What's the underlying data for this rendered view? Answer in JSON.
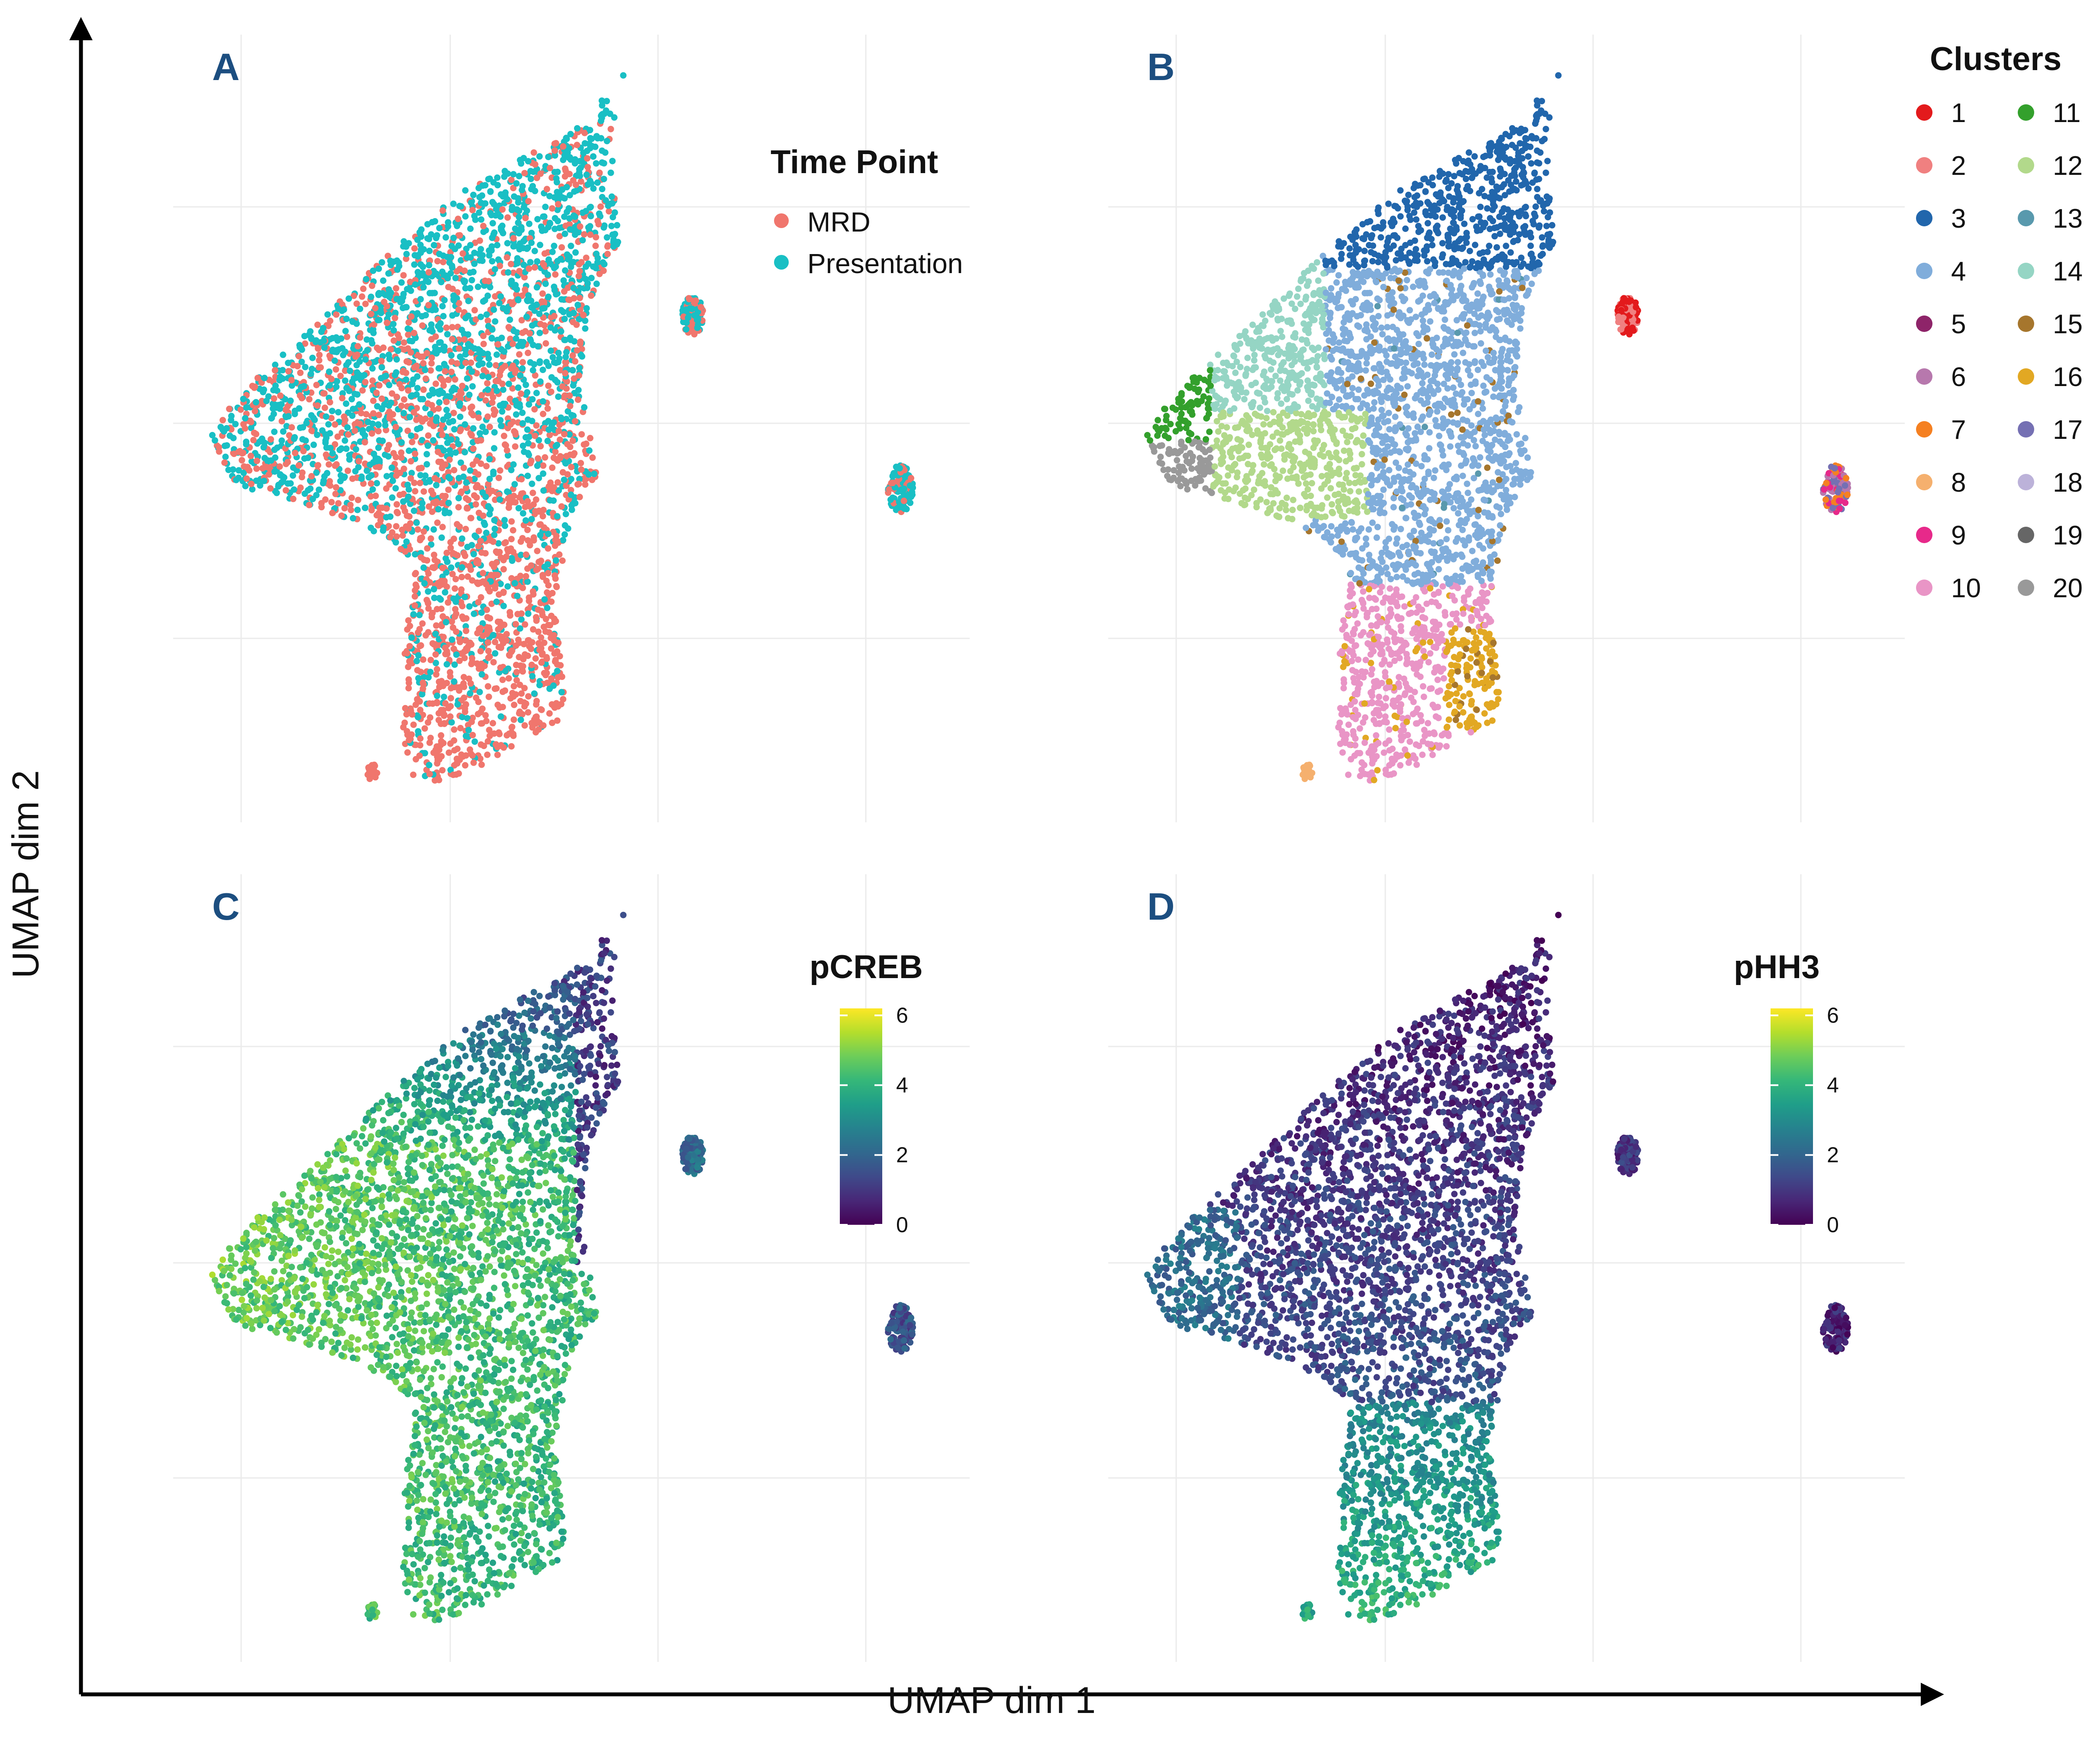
{
  "axes": {
    "x_title": "UMAP dim 1",
    "y_title": "UMAP dim 2"
  },
  "colors": {
    "mrd": "#F0766D",
    "presentation": "#19BFC4",
    "panel_letter": "#1C4E80",
    "grid": "#EBEBEB",
    "axis": "#000000",
    "viridis": [
      "#440154",
      "#482777",
      "#3F4A8A",
      "#31688E",
      "#26828E",
      "#1F9E89",
      "#35B779",
      "#6DCD59",
      "#B4DE2C",
      "#FDE725"
    ]
  },
  "chart_data": [
    {
      "panel": "A",
      "type": "scatter",
      "title": "",
      "xlabel": "UMAP dim 1",
      "ylabel": "UMAP dim 2",
      "color_mode": "categorical-timepoint",
      "legend": {
        "title": "Time Point",
        "position": "top-right",
        "entries": [
          {
            "label": "MRD",
            "color": "#F0766D"
          },
          {
            "label": "Presentation",
            "color": "#19BFC4"
          }
        ]
      }
    },
    {
      "panel": "B",
      "type": "scatter",
      "title": "",
      "xlabel": "UMAP dim 1",
      "ylabel": "UMAP dim 2",
      "color_mode": "categorical-cluster",
      "legend": {
        "title": "Clusters",
        "position": "right",
        "entries": [
          {
            "label": "1",
            "color": "#E31A1C"
          },
          {
            "label": "2",
            "color": "#F08080"
          },
          {
            "label": "3",
            "color": "#2166AC"
          },
          {
            "label": "4",
            "color": "#80ADDB"
          },
          {
            "label": "5",
            "color": "#8E2469"
          },
          {
            "label": "6",
            "color": "#B778AD"
          },
          {
            "label": "7",
            "color": "#F58021"
          },
          {
            "label": "8",
            "color": "#F5B06E"
          },
          {
            "label": "9",
            "color": "#E7298A"
          },
          {
            "label": "10",
            "color": "#E995C6"
          },
          {
            "label": "11",
            "color": "#33A02C"
          },
          {
            "label": "12",
            "color": "#B2D98B"
          },
          {
            "label": "13",
            "color": "#5999AD"
          },
          {
            "label": "14",
            "color": "#95D5C4"
          },
          {
            "label": "15",
            "color": "#A6762D"
          },
          {
            "label": "16",
            "color": "#E2A823"
          },
          {
            "label": "17",
            "color": "#7570B3"
          },
          {
            "label": "18",
            "color": "#BCB2D9"
          },
          {
            "label": "19",
            "color": "#666666"
          },
          {
            "label": "20",
            "color": "#999999"
          }
        ]
      }
    },
    {
      "panel": "C",
      "type": "scatter",
      "title": "",
      "xlabel": "UMAP dim 1",
      "ylabel": "UMAP dim 2",
      "color_mode": "continuous-pcreb",
      "legend": {
        "title": "pCREB",
        "position": "top-right",
        "colorbar": {
          "min": 0,
          "max": 6.2,
          "ticks": [
            "0",
            "2",
            "4",
            "6"
          ],
          "colormap": "viridis"
        }
      }
    },
    {
      "panel": "D",
      "type": "scatter",
      "title": "",
      "xlabel": "UMAP dim 1",
      "ylabel": "UMAP dim 2",
      "color_mode": "continuous-phh3",
      "legend": {
        "title": "pHH3",
        "position": "top-right",
        "colorbar": {
          "min": 0,
          "max": 6.2,
          "ticks": [
            "0",
            "2",
            "4",
            "6"
          ],
          "colormap": "viridis"
        }
      }
    }
  ]
}
